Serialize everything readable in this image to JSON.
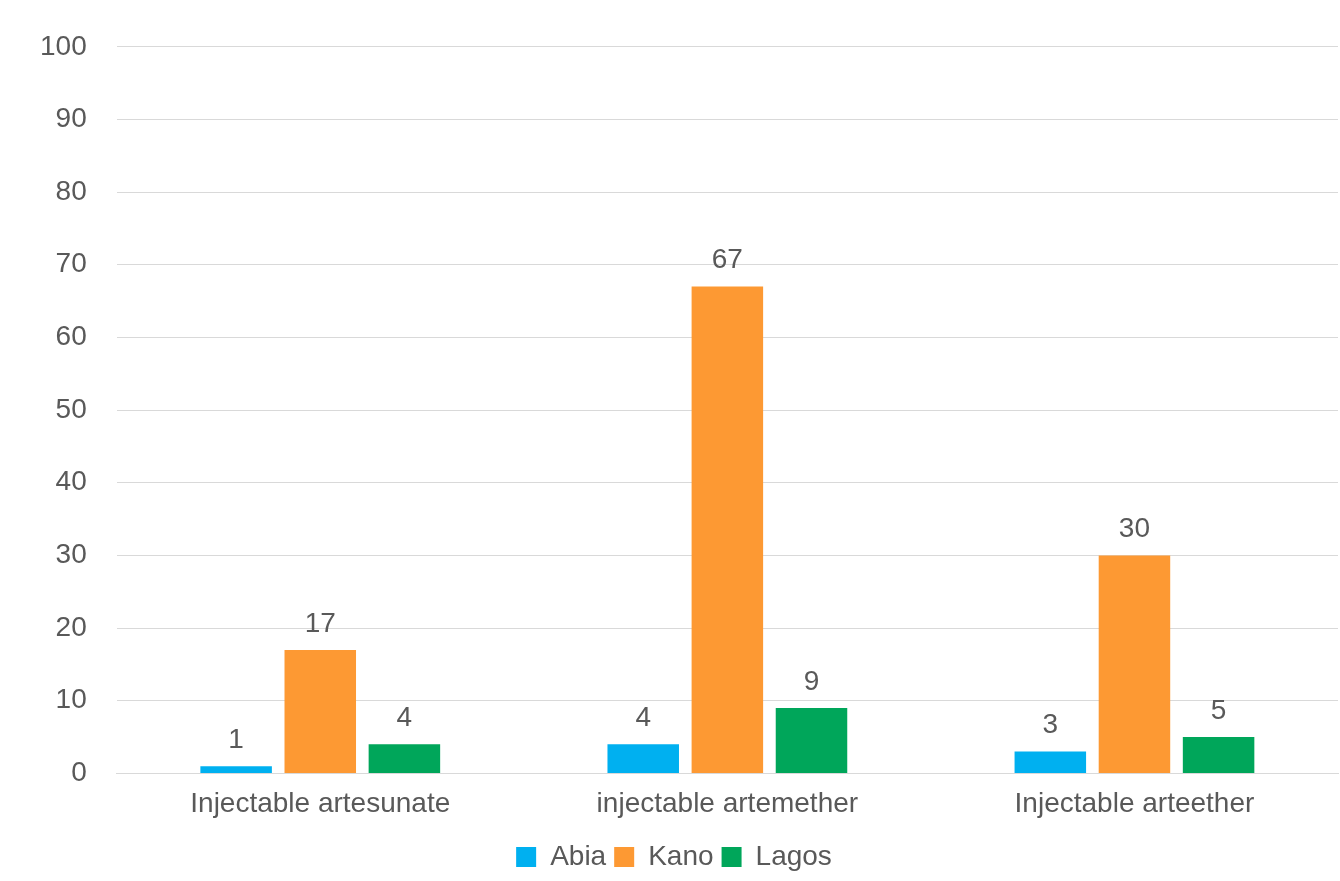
{
  "chart_data": {
    "type": "bar",
    "categories": [
      "Injectable artesunate",
      "injectable artemether",
      "Injectable arteether"
    ],
    "series": [
      {
        "name": "Abia",
        "color": "#00b0f0",
        "values": [
          1,
          4,
          3
        ]
      },
      {
        "name": "Kano",
        "color": "#fd9933",
        "values": [
          17,
          67,
          30
        ]
      },
      {
        "name": "Lagos",
        "color": "#00a65a",
        "values": [
          4,
          9,
          5
        ]
      }
    ],
    "ylim": [
      0,
      100
    ],
    "yticks": [
      0,
      10,
      20,
      30,
      40,
      50,
      60,
      70,
      80,
      90,
      100
    ],
    "grid": "y",
    "legend": "bottom",
    "data_labels": true
  }
}
